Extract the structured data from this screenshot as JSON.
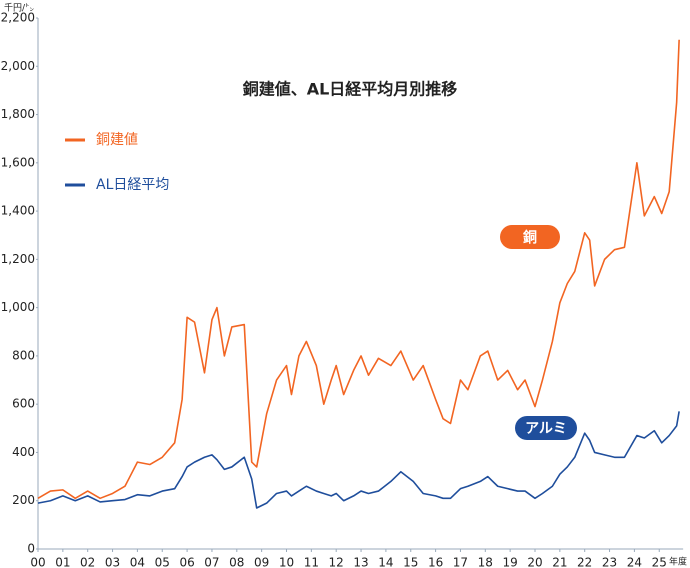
{
  "chart_data": {
    "type": "line",
    "title": "銅建値、AL日経平均月別推移",
    "y_unit": "千円/㌧",
    "x_unit": "年度",
    "x": [
      0,
      0.5,
      1,
      1.5,
      2,
      2.5,
      3,
      3.5,
      4,
      4.5,
      5,
      5.5,
      5.8,
      6.0,
      6.3,
      6.7,
      7.0,
      7.2,
      7.5,
      7.8,
      8.3,
      8.6,
      8.8,
      9.2,
      9.6,
      10,
      10.2,
      10.5,
      10.8,
      11.2,
      11.5,
      11.8,
      12,
      12.3,
      12.7,
      13,
      13.3,
      13.7,
      14.2,
      14.6,
      15.1,
      15.5,
      16,
      16.3,
      16.6,
      17,
      17.3,
      17.8,
      18.1,
      18.5,
      18.9,
      19.3,
      19.6,
      20.0,
      20.3,
      20.7,
      21.0,
      21.3,
      21.6,
      22.0,
      22.2,
      22.4,
      22.8,
      23.2,
      23.6,
      24.1,
      24.4,
      24.8,
      25.1,
      25.4,
      25.7,
      25.8
    ],
    "series": [
      {
        "name": "銅建値",
        "color": "#f26522",
        "values": [
          210,
          240,
          245,
          210,
          240,
          210,
          230,
          260,
          360,
          350,
          380,
          440,
          620,
          960,
          940,
          730,
          950,
          1000,
          800,
          920,
          930,
          360,
          340,
          560,
          700,
          760,
          640,
          800,
          860,
          760,
          600,
          700,
          760,
          640,
          740,
          800,
          720,
          790,
          760,
          820,
          700,
          760,
          620,
          540,
          520,
          700,
          660,
          800,
          820,
          700,
          740,
          660,
          700,
          590,
          700,
          860,
          1020,
          1100,
          1150,
          1310,
          1280,
          1090,
          1200,
          1240,
          1250,
          1600,
          1380,
          1460,
          1390,
          1480,
          1850,
          2110
        ]
      },
      {
        "name": "AL日経平均",
        "color": "#1f4e9c",
        "values": [
          190,
          200,
          220,
          200,
          220,
          195,
          200,
          205,
          225,
          220,
          240,
          250,
          300,
          340,
          360,
          380,
          390,
          370,
          330,
          340,
          380,
          290,
          170,
          190,
          230,
          240,
          220,
          240,
          260,
          240,
          230,
          220,
          230,
          200,
          220,
          240,
          230,
          240,
          280,
          320,
          280,
          230,
          220,
          210,
          210,
          250,
          260,
          280,
          300,
          260,
          250,
          240,
          240,
          210,
          230,
          260,
          310,
          340,
          380,
          480,
          450,
          400,
          390,
          380,
          380,
          470,
          460,
          490,
          440,
          470,
          510,
          570
        ]
      }
    ],
    "annotations": [
      "銅",
      "アルミ"
    ],
    "xlim": [
      0,
      25.8
    ],
    "xticks": [
      {
        "value": 0,
        "label": "00"
      },
      {
        "value": 1,
        "label": "01"
      },
      {
        "value": 2,
        "label": "02"
      },
      {
        "value": 3,
        "label": "03"
      },
      {
        "value": 4,
        "label": "04"
      },
      {
        "value": 5,
        "label": "05"
      },
      {
        "value": 6,
        "label": "06"
      },
      {
        "value": 7,
        "label": "07"
      },
      {
        "value": 8,
        "label": "08"
      },
      {
        "value": 9,
        "label": "09"
      },
      10,
      11,
      12,
      13,
      14,
      15,
      16,
      17,
      18,
      19,
      20,
      21,
      22,
      23,
      24,
      25
    ],
    "ylim": [
      0,
      2200
    ],
    "yticks": [
      0,
      200,
      400,
      600,
      800,
      {
        "value": 1000,
        "label": "1,000"
      },
      {
        "value": 1200,
        "label": "1,200"
      },
      {
        "value": 1400,
        "label": "1,400"
      },
      {
        "value": 1600,
        "label": "1,600"
      },
      {
        "value": 1800,
        "label": "1,800"
      },
      {
        "value": 2000,
        "label": "2,000"
      },
      {
        "value": 2200,
        "label": "2,200"
      }
    ],
    "grid": false
  }
}
